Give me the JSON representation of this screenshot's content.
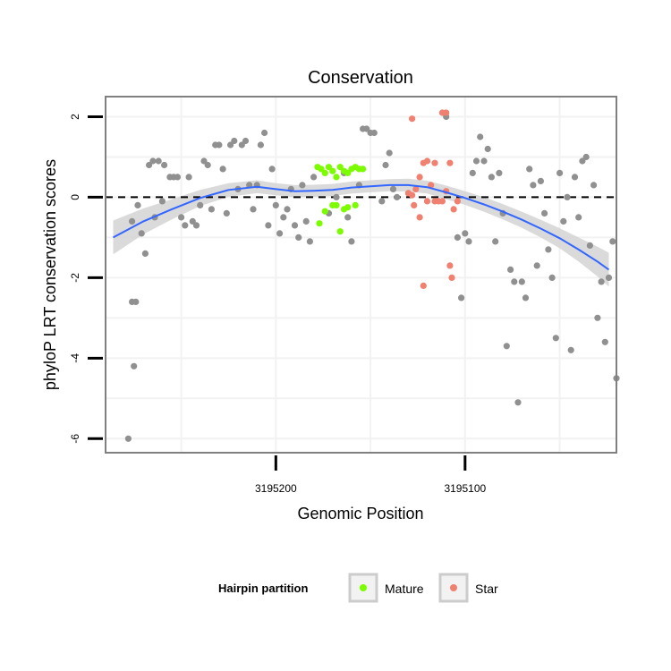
{
  "chart_data": {
    "type": "scatter",
    "title": "Conservation",
    "xlabel": "Genomic Position",
    "ylabel": "phyloP LRT conservation scores",
    "xlim": [
      3195290,
      3195020
    ],
    "ylim": [
      -6.35,
      2.5
    ],
    "xticks": [
      3195200,
      3195100
    ],
    "xtick_labels": [
      "3195200",
      "3195100"
    ],
    "yticks": [
      2,
      0,
      -2,
      -4,
      -6
    ],
    "ytick_labels": [
      "2",
      "0",
      "-2",
      "-4",
      "-6"
    ],
    "reference_line": 0,
    "grid": true,
    "legend": {
      "title": "Hairpin partition",
      "position": "bottom",
      "entries": [
        {
          "label": "Mature",
          "color": "#7CFC00"
        },
        {
          "label": "Star",
          "color": "#F08070"
        }
      ]
    },
    "colors": {
      "other": "#909090",
      "mature": "#7CFC00",
      "star": "#F08070",
      "smooth": "#3366FF",
      "band": "#D3D3D3"
    },
    "series": [
      {
        "name": "Other",
        "points": [
          [
            3195278,
            -6.0
          ],
          [
            3195276,
            -2.6
          ],
          [
            3195274,
            -2.6
          ],
          [
            3195275,
            -4.2
          ],
          [
            3195276,
            -0.6
          ],
          [
            3195273,
            -0.2
          ],
          [
            3195271,
            -0.9
          ],
          [
            3195269,
            -1.4
          ],
          [
            3195267,
            0.8
          ],
          [
            3195265,
            0.9
          ],
          [
            3195262,
            0.9
          ],
          [
            3195259,
            0.8
          ],
          [
            3195264,
            -0.5
          ],
          [
            3195260,
            -0.1
          ],
          [
            3195256,
            0.5
          ],
          [
            3195254,
            0.5
          ],
          [
            3195252,
            0.5
          ],
          [
            3195250,
            -0.5
          ],
          [
            3195248,
            -0.7
          ],
          [
            3195246,
            0.5
          ],
          [
            3195244,
            -0.6
          ],
          [
            3195242,
            -0.7
          ],
          [
            3195240,
            -0.2
          ],
          [
            3195238,
            0.9
          ],
          [
            3195236,
            0.8
          ],
          [
            3195234,
            -0.3
          ],
          [
            3195232,
            1.3
          ],
          [
            3195230,
            1.3
          ],
          [
            3195228,
            0.7
          ],
          [
            3195226,
            -0.4
          ],
          [
            3195224,
            1.3
          ],
          [
            3195222,
            1.4
          ],
          [
            3195220,
            0.2
          ],
          [
            3195218,
            1.3
          ],
          [
            3195216,
            1.4
          ],
          [
            3195214,
            0.3
          ],
          [
            3195212,
            -0.3
          ],
          [
            3195210,
            0.3
          ],
          [
            3195208,
            1.3
          ],
          [
            3195206,
            1.6
          ],
          [
            3195204,
            -0.7
          ],
          [
            3195202,
            0.7
          ],
          [
            3195200,
            -0.2
          ],
          [
            3195198,
            -0.9
          ],
          [
            3195196,
            -0.5
          ],
          [
            3195194,
            -0.3
          ],
          [
            3195192,
            0.2
          ],
          [
            3195190,
            -0.7
          ],
          [
            3195188,
            -1.0
          ],
          [
            3195186,
            0.3
          ],
          [
            3195184,
            -0.6
          ],
          [
            3195182,
            -1.1
          ],
          [
            3195180,
            0.5
          ],
          [
            3195172,
            -0.4
          ],
          [
            3195168,
            0.0
          ],
          [
            3195164,
            0.6
          ],
          [
            3195162,
            -0.5
          ],
          [
            3195160,
            -1.1
          ],
          [
            3195156,
            0.3
          ],
          [
            3195154,
            1.7
          ],
          [
            3195152,
            1.7
          ],
          [
            3195150,
            1.6
          ],
          [
            3195148,
            1.6
          ],
          [
            3195144,
            -0.1
          ],
          [
            3195142,
            0.8
          ],
          [
            3195140,
            1.1
          ],
          [
            3195138,
            0.2
          ],
          [
            3195136,
            0.0
          ],
          [
            3195110,
            2.0
          ],
          [
            3195104,
            -1.0
          ],
          [
            3195102,
            -2.5
          ],
          [
            3195100,
            -0.9
          ],
          [
            3195098,
            -1.1
          ],
          [
            3195096,
            0.6
          ],
          [
            3195094,
            0.9
          ],
          [
            3195092,
            1.5
          ],
          [
            3195090,
            0.9
          ],
          [
            3195088,
            1.2
          ],
          [
            3195086,
            0.5
          ],
          [
            3195084,
            -1.1
          ],
          [
            3195082,
            0.6
          ],
          [
            3195080,
            -0.4
          ],
          [
            3195078,
            -3.7
          ],
          [
            3195076,
            -1.8
          ],
          [
            3195074,
            -2.1
          ],
          [
            3195072,
            -5.1
          ],
          [
            3195070,
            -2.1
          ],
          [
            3195068,
            -2.5
          ],
          [
            3195066,
            0.7
          ],
          [
            3195064,
            0.3
          ],
          [
            3195062,
            -1.7
          ],
          [
            3195060,
            0.4
          ],
          [
            3195058,
            -0.4
          ],
          [
            3195056,
            -1.3
          ],
          [
            3195054,
            -2.0
          ],
          [
            3195052,
            -3.5
          ],
          [
            3195050,
            0.6
          ],
          [
            3195048,
            -0.6
          ],
          [
            3195046,
            0.0
          ],
          [
            3195044,
            -3.8
          ],
          [
            3195042,
            0.5
          ],
          [
            3195040,
            -0.5
          ],
          [
            3195038,
            0.9
          ],
          [
            3195036,
            1.0
          ],
          [
            3195034,
            -1.2
          ],
          [
            3195032,
            0.3
          ],
          [
            3195030,
            -3.0
          ],
          [
            3195028,
            -2.1
          ],
          [
            3195026,
            -3.6
          ],
          [
            3195024,
            -2.0
          ],
          [
            3195022,
            -1.1
          ],
          [
            3195020,
            -4.5
          ]
        ]
      },
      {
        "name": "Mature",
        "points": [
          [
            3195178,
            0.75
          ],
          [
            3195176,
            0.7
          ],
          [
            3195174,
            0.6
          ],
          [
            3195172,
            0.75
          ],
          [
            3195170,
            0.65
          ],
          [
            3195168,
            0.5
          ],
          [
            3195166,
            0.75
          ],
          [
            3195164,
            0.65
          ],
          [
            3195162,
            0.6
          ],
          [
            3195160,
            0.7
          ],
          [
            3195158,
            0.75
          ],
          [
            3195156,
            0.7
          ],
          [
            3195154,
            0.7
          ],
          [
            3195177,
            -0.65
          ],
          [
            3195174,
            -0.35
          ],
          [
            3195170,
            -0.2
          ],
          [
            3195168,
            -0.2
          ],
          [
            3195166,
            -0.85
          ],
          [
            3195164,
            -0.3
          ],
          [
            3195162,
            -0.25
          ],
          [
            3195158,
            -0.2
          ]
        ]
      },
      {
        "name": "Star",
        "points": [
          [
            3195128,
            1.95
          ],
          [
            3195122,
            0.85
          ],
          [
            3195120,
            0.9
          ],
          [
            3195116,
            0.85
          ],
          [
            3195112,
            2.1
          ],
          [
            3195110,
            2.1
          ],
          [
            3195108,
            0.85
          ],
          [
            3195124,
            0.5
          ],
          [
            3195126,
            0.2
          ],
          [
            3195128,
            0.05
          ],
          [
            3195130,
            0.1
          ],
          [
            3195127,
            -0.2
          ],
          [
            3195124,
            -0.5
          ],
          [
            3195120,
            -0.1
          ],
          [
            3195118,
            0.3
          ],
          [
            3195116,
            -0.1
          ],
          [
            3195114,
            -0.1
          ],
          [
            3195112,
            -0.1
          ],
          [
            3195110,
            0.15
          ],
          [
            3195106,
            -0.3
          ],
          [
            3195108,
            -1.7
          ],
          [
            3195107,
            -2.0
          ],
          [
            3195122,
            -2.2
          ],
          [
            3195104,
            -0.1
          ]
        ]
      }
    ],
    "smooth_x": [
      3195286,
      3195270,
      3195255,
      3195240,
      3195225,
      3195210,
      3195200,
      3195190,
      3195180,
      3195170,
      3195160,
      3195150,
      3195140,
      3195130,
      3195120,
      3195110,
      3195100,
      3195090,
      3195080,
      3195070,
      3195060,
      3195050,
      3195040,
      3195030,
      3195024
    ],
    "smooth_y": [
      -1.0,
      -0.6,
      -0.3,
      -0.02,
      0.18,
      0.26,
      0.2,
      0.15,
      0.16,
      0.18,
      0.24,
      0.27,
      0.3,
      0.3,
      0.25,
      0.12,
      -0.02,
      -0.18,
      -0.36,
      -0.56,
      -0.78,
      -1.02,
      -1.3,
      -1.6,
      -1.8
    ],
    "smooth_se": [
      0.42,
      0.32,
      0.25,
      0.2,
      0.17,
      0.16,
      0.15,
      0.15,
      0.15,
      0.15,
      0.15,
      0.15,
      0.15,
      0.16,
      0.16,
      0.17,
      0.17,
      0.18,
      0.19,
      0.2,
      0.22,
      0.25,
      0.3,
      0.37,
      0.42
    ]
  }
}
